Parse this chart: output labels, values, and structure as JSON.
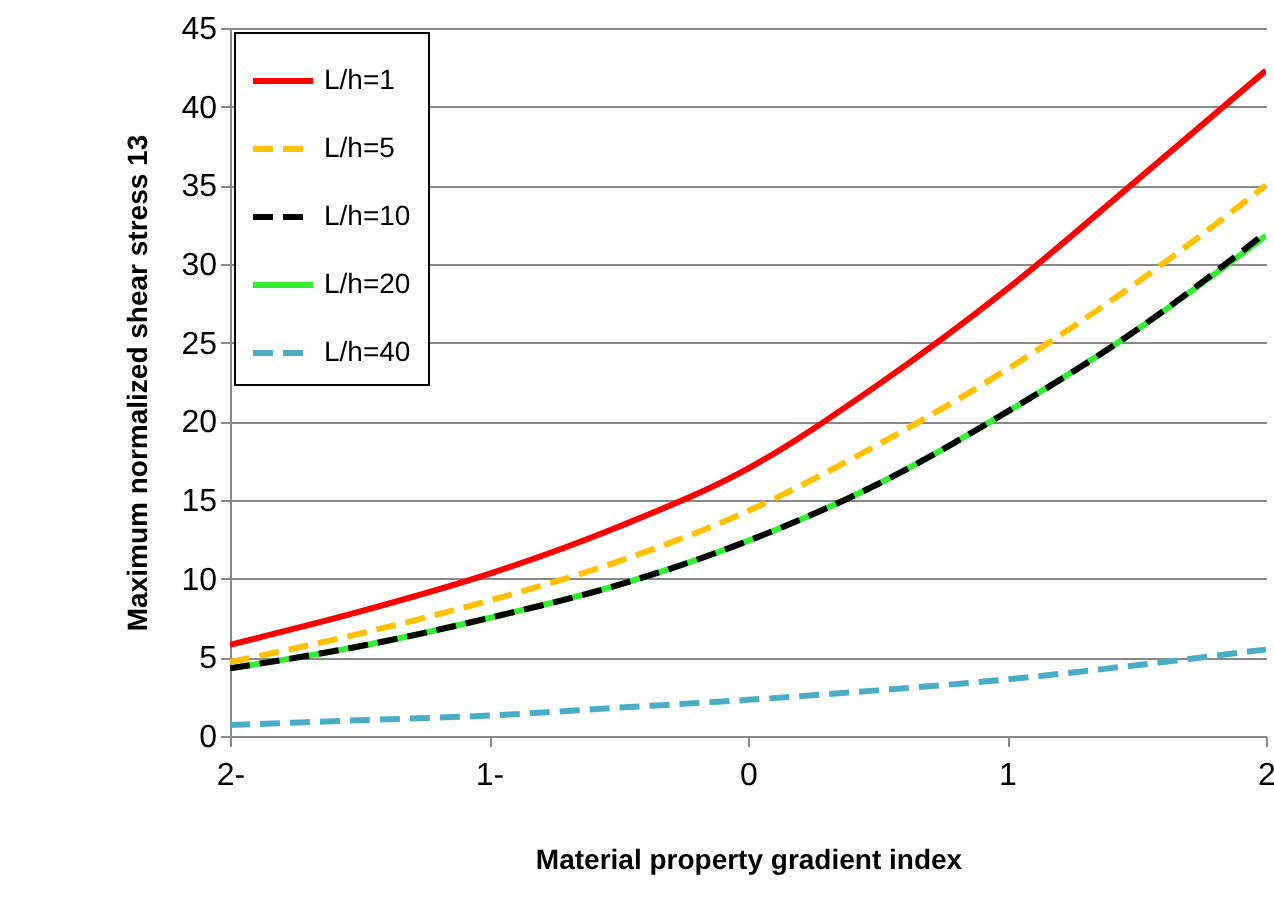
{
  "chart_data": {
    "type": "line",
    "xlabel": "Material property gradient index",
    "ylabel": "Maximum normalized shear stress 13",
    "x": [
      -2,
      -1.5,
      -1,
      -0.5,
      0,
      0.5,
      1,
      1.5,
      2
    ],
    "xlim": [
      -2,
      2
    ],
    "xticks": [
      {
        "value": -2,
        "label": "2-"
      },
      {
        "value": -1,
        "label": "1-"
      },
      0,
      1,
      2
    ],
    "ylim": [
      0,
      45
    ],
    "yticks": [
      0,
      5,
      10,
      15,
      20,
      25,
      30,
      35,
      40,
      45
    ],
    "grid": "y",
    "legend": "top left",
    "series": [
      {
        "name": "L/h=1",
        "color": "#ff0000",
        "line_style": "solid",
        "values": [
          5.8,
          7.9,
          10.3,
          13.3,
          17,
          22.3,
          28.4,
          35.3,
          42.3
        ]
      },
      {
        "name": "L/h=5",
        "color": "#ffc000",
        "line_style": "dashed",
        "values": [
          4.7,
          6.5,
          8.6,
          11.1,
          14.3,
          18.5,
          23.3,
          28.8,
          35
        ]
      },
      {
        "name": "L/h=10",
        "color": "#000000",
        "line_style": "dashed",
        "values": [
          4.3,
          5.7,
          7.5,
          9.6,
          12.4,
          16,
          20.6,
          25.8,
          32
        ]
      },
      {
        "name": "L/h=20",
        "color": "#33ee33",
        "line_style": "solid",
        "values": [
          4.3,
          5.7,
          7.5,
          9.6,
          12.4,
          16,
          20.6,
          25.8,
          31.8
        ]
      },
      {
        "name": "L/h=40",
        "color": "#4bacc6",
        "line_style": "dashed",
        "values": [
          0.7,
          1,
          1.3,
          1.8,
          2.3,
          2.9,
          3.6,
          4.5,
          5.5
        ]
      }
    ]
  }
}
